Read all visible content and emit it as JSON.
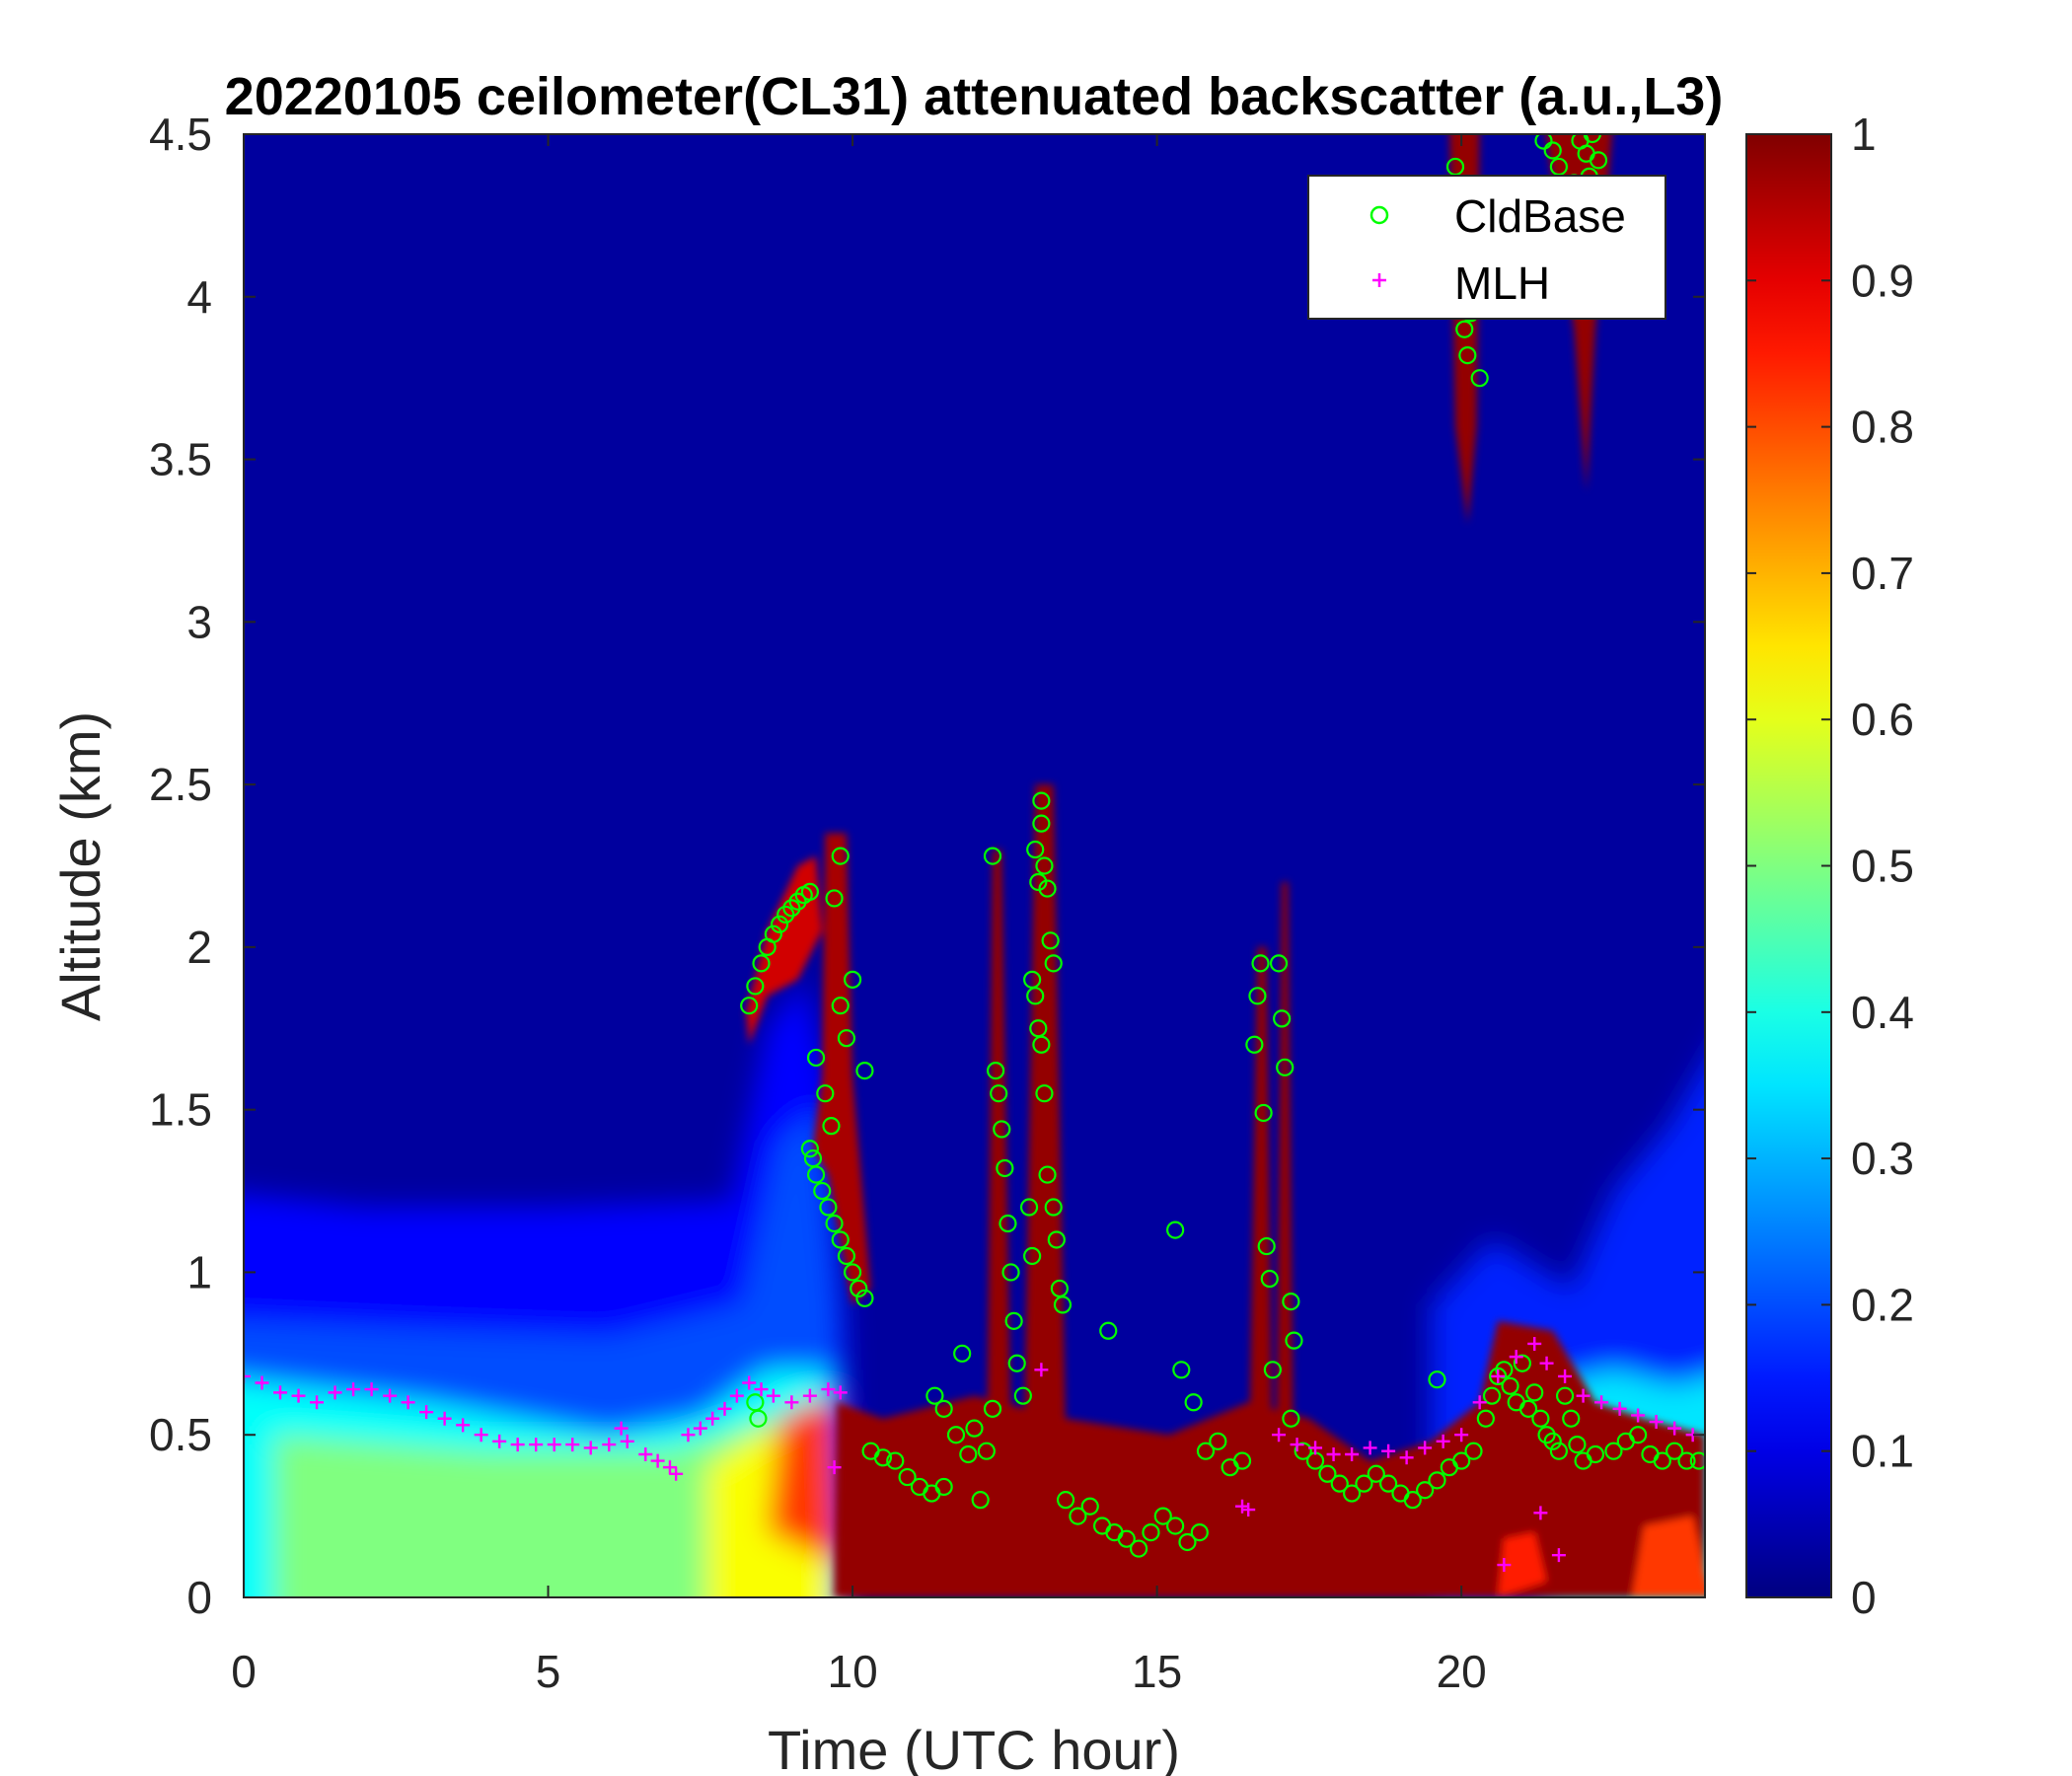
{
  "chart_data": {
    "type": "heatmap",
    "title": "20220105 ceilometer(CL31) attenuated backscatter (a.u.,L3)",
    "xlabel": "Time (UTC hour)",
    "ylabel": "Altitude (km)",
    "xlim": [
      0,
      24
    ],
    "ylim": [
      0,
      4.5
    ],
    "xticks": [
      0,
      5,
      10,
      15,
      20
    ],
    "xtick_labels": [
      "0",
      "5",
      "10",
      "15",
      "20"
    ],
    "yticks": [
      0,
      0.5,
      1,
      1.5,
      2,
      2.5,
      3,
      3.5,
      4,
      4.5
    ],
    "ytick_labels": [
      "0",
      "0.5",
      "1",
      "1.5",
      "2",
      "2.5",
      "3",
      "3.5",
      "4",
      "4.5"
    ],
    "colorbar": {
      "colormap": "jet",
      "range": [
        0,
        1
      ],
      "ticks": [
        0,
        0.1,
        0.2,
        0.3,
        0.4,
        0.5,
        0.6,
        0.7,
        0.8,
        0.9,
        1
      ],
      "tick_labels": [
        "0",
        "0.1",
        "0.2",
        "0.3",
        "0.4",
        "0.5",
        "0.6",
        "0.7",
        "0.8",
        "0.9",
        "1"
      ]
    },
    "legend": {
      "placement": "top-right"
    },
    "series": [
      {
        "name": "CldBase",
        "marker": "circle",
        "color": "#00ff00",
        "points": [
          [
            8.3,
            1.82
          ],
          [
            8.4,
            1.88
          ],
          [
            8.5,
            1.95
          ],
          [
            8.6,
            2.0
          ],
          [
            8.7,
            2.04
          ],
          [
            8.8,
            2.07
          ],
          [
            8.9,
            2.1
          ],
          [
            9.0,
            2.12
          ],
          [
            9.1,
            2.14
          ],
          [
            9.2,
            2.16
          ],
          [
            9.3,
            2.17
          ],
          [
            8.4,
            0.6
          ],
          [
            8.45,
            0.55
          ],
          [
            9.3,
            1.38
          ],
          [
            9.35,
            1.35
          ],
          [
            9.4,
            1.3
          ],
          [
            9.5,
            1.25
          ],
          [
            9.6,
            1.2
          ],
          [
            9.7,
            1.15
          ],
          [
            9.8,
            1.1
          ],
          [
            9.9,
            1.05
          ],
          [
            10.0,
            1.0
          ],
          [
            10.1,
            0.95
          ],
          [
            10.2,
            0.92
          ],
          [
            9.4,
            1.66
          ],
          [
            9.55,
            1.55
          ],
          [
            9.65,
            1.45
          ],
          [
            9.7,
            2.15
          ],
          [
            9.8,
            2.28
          ],
          [
            9.8,
            1.82
          ],
          [
            9.9,
            1.72
          ],
          [
            10.0,
            1.9
          ],
          [
            10.2,
            1.62
          ],
          [
            10.3,
            0.45
          ],
          [
            10.5,
            0.43
          ],
          [
            10.7,
            0.42
          ],
          [
            10.9,
            0.37
          ],
          [
            11.1,
            0.34
          ],
          [
            11.3,
            0.32
          ],
          [
            11.5,
            0.34
          ],
          [
            11.35,
            0.62
          ],
          [
            11.5,
            0.58
          ],
          [
            11.7,
            0.5
          ],
          [
            11.8,
            0.75
          ],
          [
            11.9,
            0.44
          ],
          [
            12.0,
            0.52
          ],
          [
            12.1,
            0.3
          ],
          [
            12.2,
            0.45
          ],
          [
            12.3,
            0.58
          ],
          [
            12.3,
            2.28
          ],
          [
            12.35,
            1.62
          ],
          [
            12.4,
            1.55
          ],
          [
            12.45,
            1.44
          ],
          [
            12.5,
            1.32
          ],
          [
            12.55,
            1.15
          ],
          [
            12.6,
            1.0
          ],
          [
            12.65,
            0.85
          ],
          [
            12.7,
            0.72
          ],
          [
            12.8,
            0.62
          ],
          [
            12.9,
            1.2
          ],
          [
            12.95,
            1.05
          ],
          [
            13.0,
            2.3
          ],
          [
            13.05,
            2.2
          ],
          [
            13.1,
            2.45
          ],
          [
            13.1,
            2.38
          ],
          [
            13.15,
            2.25
          ],
          [
            13.2,
            2.18
          ],
          [
            13.25,
            2.02
          ],
          [
            13.3,
            1.95
          ],
          [
            12.95,
            1.9
          ],
          [
            13.0,
            1.85
          ],
          [
            13.05,
            1.75
          ],
          [
            13.1,
            1.7
          ],
          [
            13.15,
            1.55
          ],
          [
            13.2,
            1.3
          ],
          [
            13.3,
            1.2
          ],
          [
            13.35,
            1.1
          ],
          [
            13.4,
            0.95
          ],
          [
            13.45,
            0.9
          ],
          [
            13.5,
            0.3
          ],
          [
            13.7,
            0.25
          ],
          [
            13.9,
            0.28
          ],
          [
            14.1,
            0.22
          ],
          [
            14.2,
            0.82
          ],
          [
            14.3,
            0.2
          ],
          [
            14.5,
            0.18
          ],
          [
            14.7,
            0.15
          ],
          [
            14.9,
            0.2
          ],
          [
            15.1,
            0.25
          ],
          [
            15.3,
            0.22
          ],
          [
            15.5,
            0.17
          ],
          [
            15.7,
            0.2
          ],
          [
            15.3,
            1.13
          ],
          [
            15.4,
            0.7
          ],
          [
            15.6,
            0.6
          ],
          [
            15.8,
            0.45
          ],
          [
            16.0,
            0.48
          ],
          [
            16.2,
            0.4
          ],
          [
            16.4,
            0.42
          ],
          [
            16.6,
            1.7
          ],
          [
            16.65,
            1.85
          ],
          [
            16.7,
            1.95
          ],
          [
            16.75,
            1.49
          ],
          [
            16.8,
            1.08
          ],
          [
            16.85,
            0.98
          ],
          [
            16.9,
            0.7
          ],
          [
            17.0,
            1.95
          ],
          [
            17.05,
            1.78
          ],
          [
            17.1,
            1.63
          ],
          [
            17.2,
            0.91
          ],
          [
            17.25,
            0.79
          ],
          [
            17.2,
            0.55
          ],
          [
            17.4,
            0.45
          ],
          [
            17.6,
            0.42
          ],
          [
            17.8,
            0.38
          ],
          [
            18.0,
            0.35
          ],
          [
            18.2,
            0.32
          ],
          [
            18.4,
            0.35
          ],
          [
            18.6,
            0.38
          ],
          [
            18.8,
            0.35
          ],
          [
            19.0,
            0.32
          ],
          [
            19.2,
            0.3
          ],
          [
            19.4,
            0.33
          ],
          [
            19.6,
            0.36
          ],
          [
            19.8,
            0.4
          ],
          [
            20.0,
            0.42
          ],
          [
            19.6,
            0.67
          ],
          [
            20.2,
            0.45
          ],
          [
            20.4,
            0.55
          ],
          [
            20.5,
            0.62
          ],
          [
            20.6,
            0.68
          ],
          [
            20.7,
            0.7
          ],
          [
            20.8,
            0.65
          ],
          [
            20.9,
            0.6
          ],
          [
            21.0,
            0.72
          ],
          [
            21.1,
            0.58
          ],
          [
            21.2,
            0.63
          ],
          [
            21.3,
            0.55
          ],
          [
            21.4,
            0.5
          ],
          [
            21.5,
            0.48
          ],
          [
            21.6,
            0.45
          ],
          [
            21.7,
            0.62
          ],
          [
            21.8,
            0.55
          ],
          [
            21.9,
            0.47
          ],
          [
            22.0,
            0.42
          ],
          [
            22.2,
            0.44
          ],
          [
            22.5,
            0.45
          ],
          [
            22.7,
            0.48
          ],
          [
            22.9,
            0.5
          ],
          [
            23.1,
            0.44
          ],
          [
            23.3,
            0.42
          ],
          [
            23.5,
            0.45
          ],
          [
            23.7,
            0.42
          ],
          [
            23.9,
            0.42
          ],
          [
            19.9,
            4.4
          ],
          [
            20.0,
            4.05
          ],
          [
            20.05,
            3.9
          ],
          [
            20.1,
            3.82
          ],
          [
            20.15,
            3.95
          ],
          [
            20.2,
            4.1
          ],
          [
            20.3,
            3.75
          ],
          [
            20.0,
            4.25
          ],
          [
            21.35,
            4.48
          ],
          [
            21.5,
            4.45
          ],
          [
            21.6,
            4.4
          ],
          [
            21.75,
            4.3
          ],
          [
            21.85,
            4.35
          ],
          [
            21.95,
            4.48
          ],
          [
            22.05,
            4.44
          ],
          [
            22.15,
            4.5
          ],
          [
            22.25,
            4.42
          ],
          [
            22.1,
            4.37
          ],
          [
            22.2,
            4.32
          ],
          [
            21.7,
            4.26
          ]
        ]
      },
      {
        "name": "MLH",
        "marker": "plus",
        "color": "#ff00ff",
        "points": [
          [
            0.0,
            0.68
          ],
          [
            0.3,
            0.66
          ],
          [
            0.6,
            0.63
          ],
          [
            0.9,
            0.62
          ],
          [
            1.2,
            0.6
          ],
          [
            1.5,
            0.63
          ],
          [
            1.8,
            0.64
          ],
          [
            2.1,
            0.64
          ],
          [
            2.4,
            0.62
          ],
          [
            2.7,
            0.6
          ],
          [
            3.0,
            0.57
          ],
          [
            3.3,
            0.55
          ],
          [
            3.6,
            0.53
          ],
          [
            3.9,
            0.5
          ],
          [
            4.2,
            0.48
          ],
          [
            4.5,
            0.47
          ],
          [
            4.8,
            0.47
          ],
          [
            5.1,
            0.47
          ],
          [
            5.4,
            0.47
          ],
          [
            5.7,
            0.46
          ],
          [
            6.0,
            0.47
          ],
          [
            6.2,
            0.52
          ],
          [
            6.3,
            0.48
          ],
          [
            6.6,
            0.44
          ],
          [
            6.8,
            0.42
          ],
          [
            7.0,
            0.4
          ],
          [
            7.1,
            0.38
          ],
          [
            7.3,
            0.5
          ],
          [
            7.5,
            0.52
          ],
          [
            7.7,
            0.55
          ],
          [
            7.9,
            0.58
          ],
          [
            8.1,
            0.62
          ],
          [
            8.3,
            0.66
          ],
          [
            8.5,
            0.64
          ],
          [
            8.7,
            0.62
          ],
          [
            9.0,
            0.6
          ],
          [
            9.3,
            0.62
          ],
          [
            9.6,
            0.64
          ],
          [
            9.8,
            0.63
          ],
          [
            9.7,
            0.4
          ],
          [
            13.1,
            0.7
          ],
          [
            16.4,
            0.28
          ],
          [
            16.5,
            0.27
          ],
          [
            17.0,
            0.5
          ],
          [
            17.3,
            0.47
          ],
          [
            17.6,
            0.46
          ],
          [
            17.9,
            0.44
          ],
          [
            18.2,
            0.44
          ],
          [
            18.5,
            0.46
          ],
          [
            18.8,
            0.45
          ],
          [
            19.1,
            0.43
          ],
          [
            19.4,
            0.46
          ],
          [
            19.7,
            0.48
          ],
          [
            20.0,
            0.5
          ],
          [
            20.3,
            0.6
          ],
          [
            20.6,
            0.68
          ],
          [
            20.9,
            0.74
          ],
          [
            21.2,
            0.78
          ],
          [
            21.4,
            0.72
          ],
          [
            21.7,
            0.68
          ],
          [
            22.0,
            0.62
          ],
          [
            22.3,
            0.6
          ],
          [
            22.6,
            0.58
          ],
          [
            22.9,
            0.56
          ],
          [
            23.2,
            0.54
          ],
          [
            23.5,
            0.52
          ],
          [
            23.8,
            0.5
          ],
          [
            20.7,
            0.1
          ],
          [
            21.3,
            0.26
          ],
          [
            21.6,
            0.13
          ]
        ]
      }
    ]
  }
}
